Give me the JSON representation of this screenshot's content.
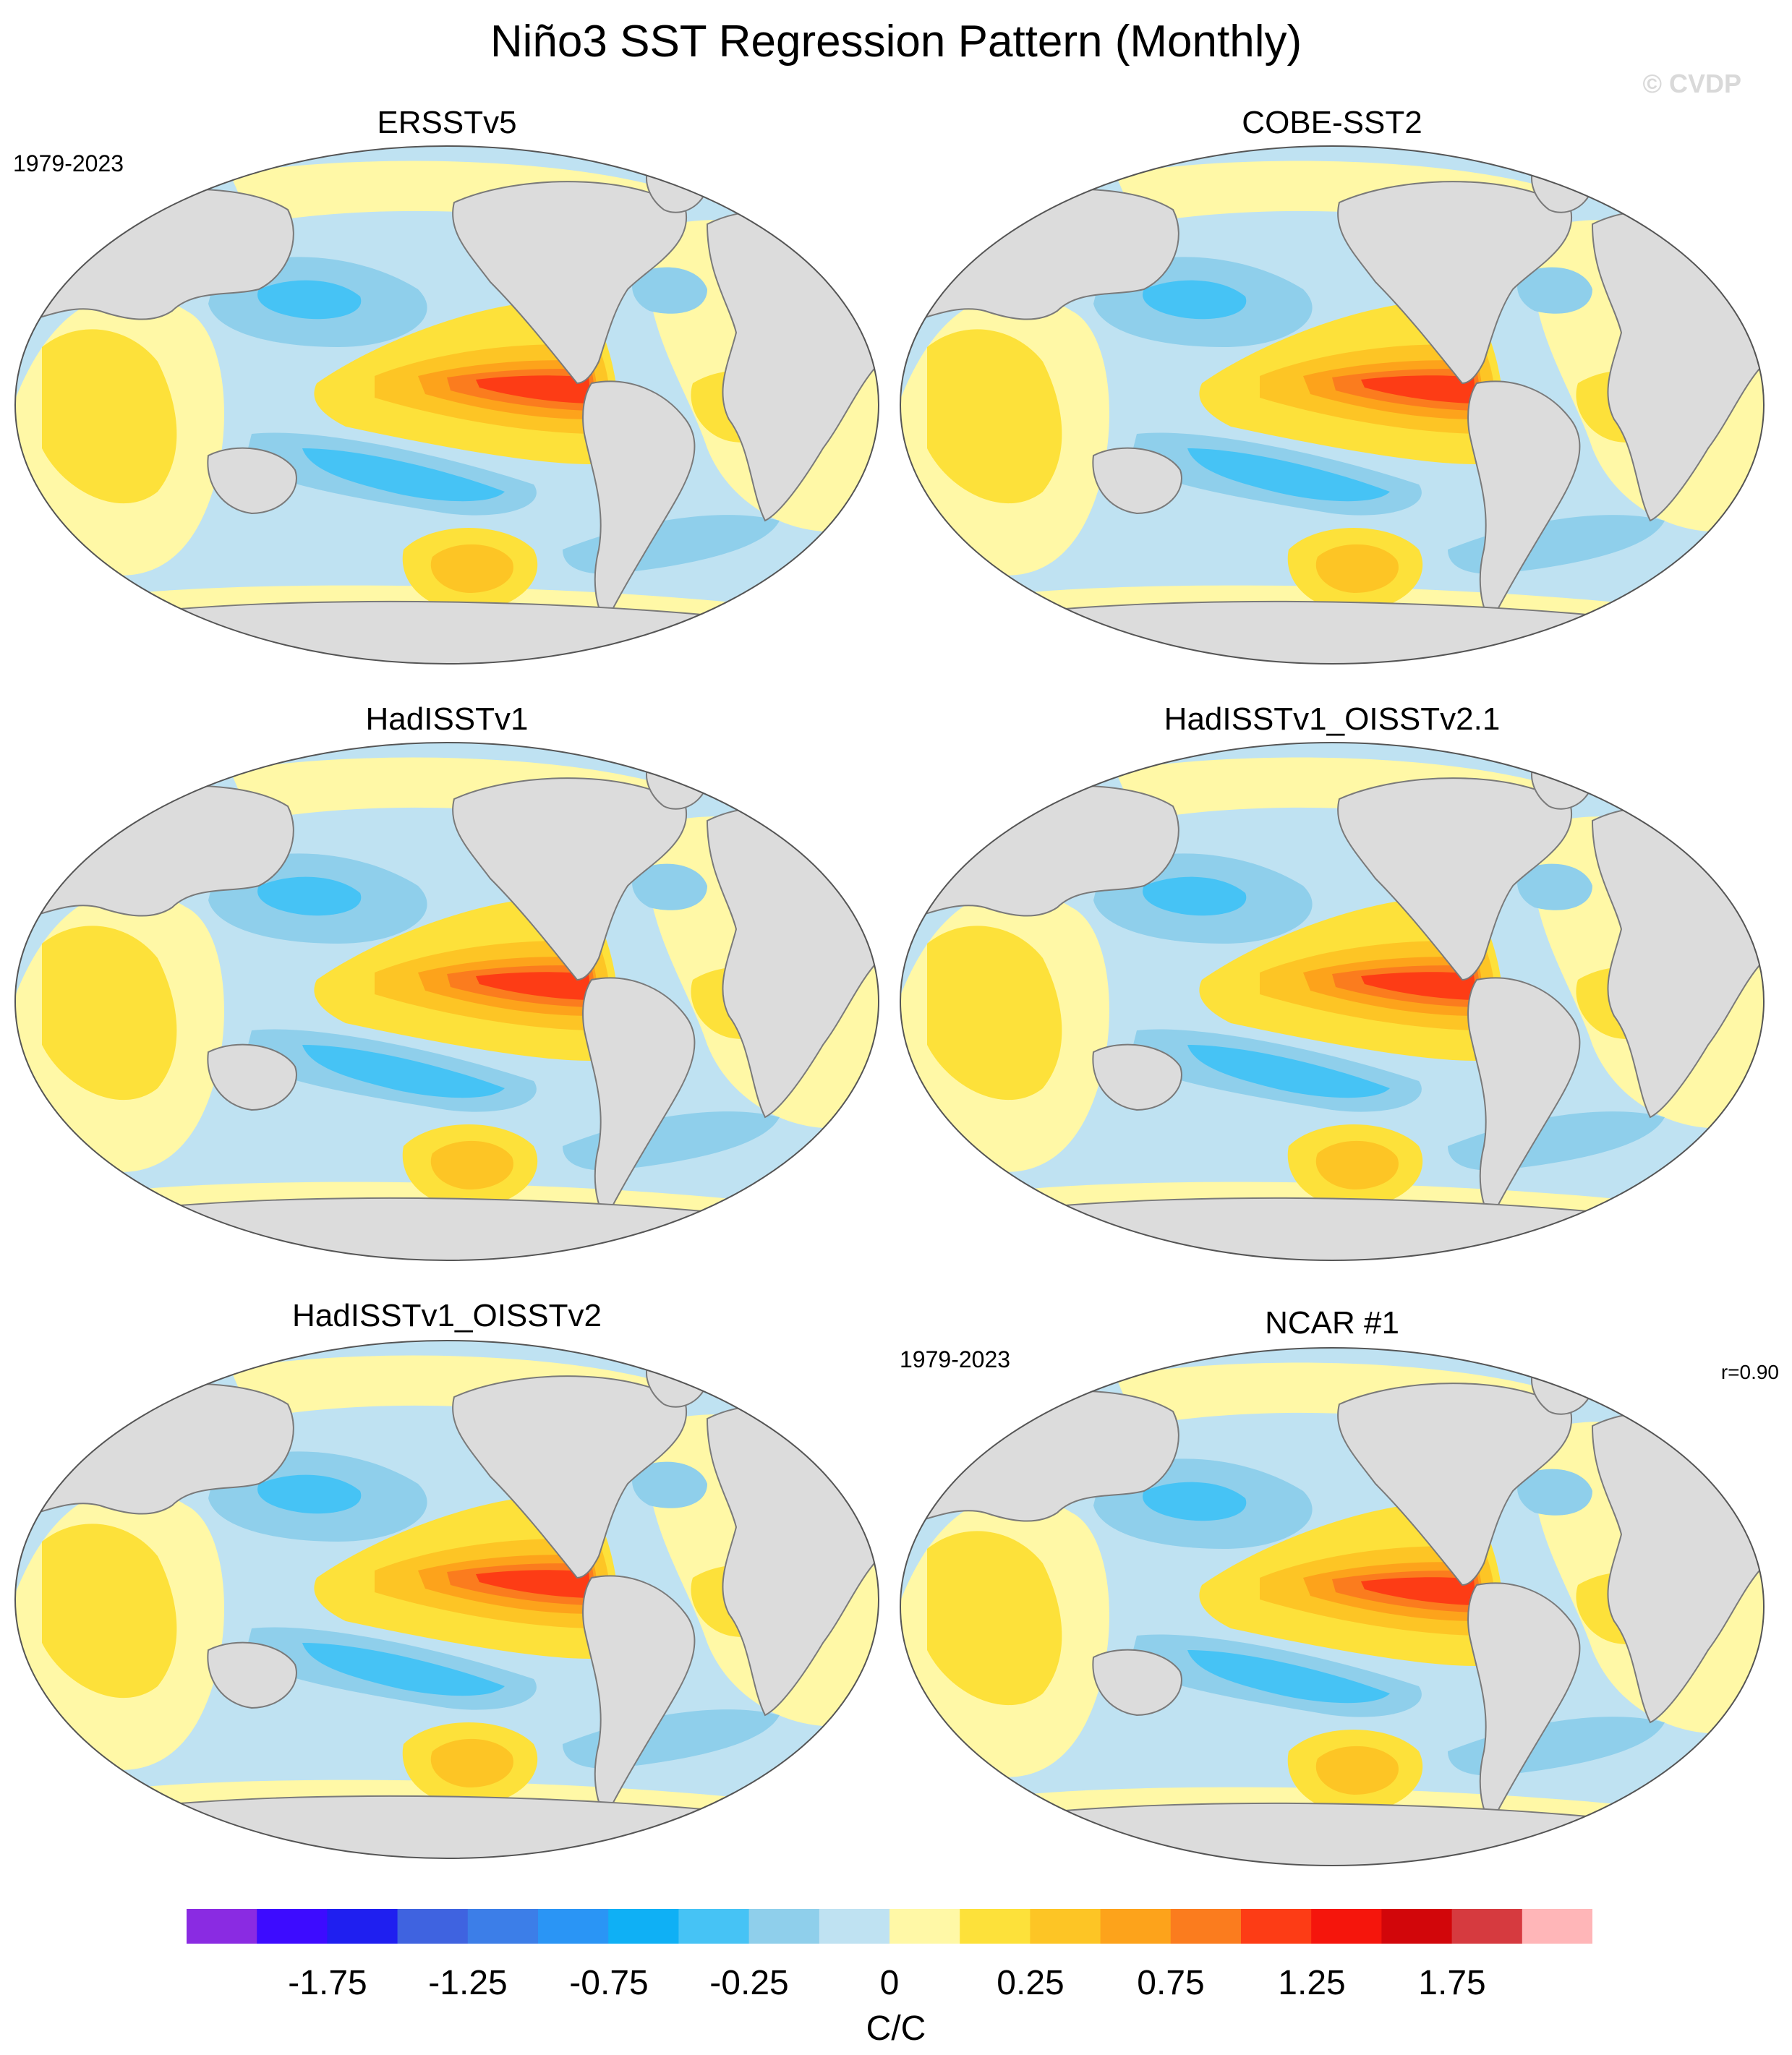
{
  "title": "Niño3 SST Regression Pattern (Monthly)",
  "watermark": "© CVDP",
  "panels": [
    {
      "title": "ERSSTv5",
      "period": "1979-2023",
      "r": ""
    },
    {
      "title": "COBE-SST2",
      "period": "",
      "r": ""
    },
    {
      "title": "HadISSTv1",
      "period": "",
      "r": ""
    },
    {
      "title": "HadISSTv1_OISSTv2.1",
      "period": "",
      "r": ""
    },
    {
      "title": "HadISSTv1_OISSTv2",
      "period": "",
      "r": ""
    },
    {
      "title": "NCAR #1",
      "period": "1979-2023",
      "r": "r=0.90"
    }
  ],
  "colorbar": {
    "units": "C/C",
    "tick_labels": [
      "-1.75",
      "-1.25",
      "-0.75",
      "-0.25",
      "0",
      "0.25",
      "0.75",
      "1.25",
      "1.75"
    ],
    "colors": [
      "#8a2be2",
      "#3d0bff",
      "#1f1ff0",
      "#3f63e0",
      "#3c7ee8",
      "#2a95f5",
      "#0fb0f5",
      "#46c3f5",
      "#8fcfeb",
      "#bfe2f2",
      "#fff8a6",
      "#fde13a",
      "#fdc525",
      "#fda31b",
      "#fb7c1e",
      "#fd3c15",
      "#f5150c",
      "#d2060a",
      "#d63a3f",
      "#ffb6b8"
    ]
  },
  "map_colors": {
    "land": "#dcdcdc",
    "coast": "#7a7a7a"
  }
}
